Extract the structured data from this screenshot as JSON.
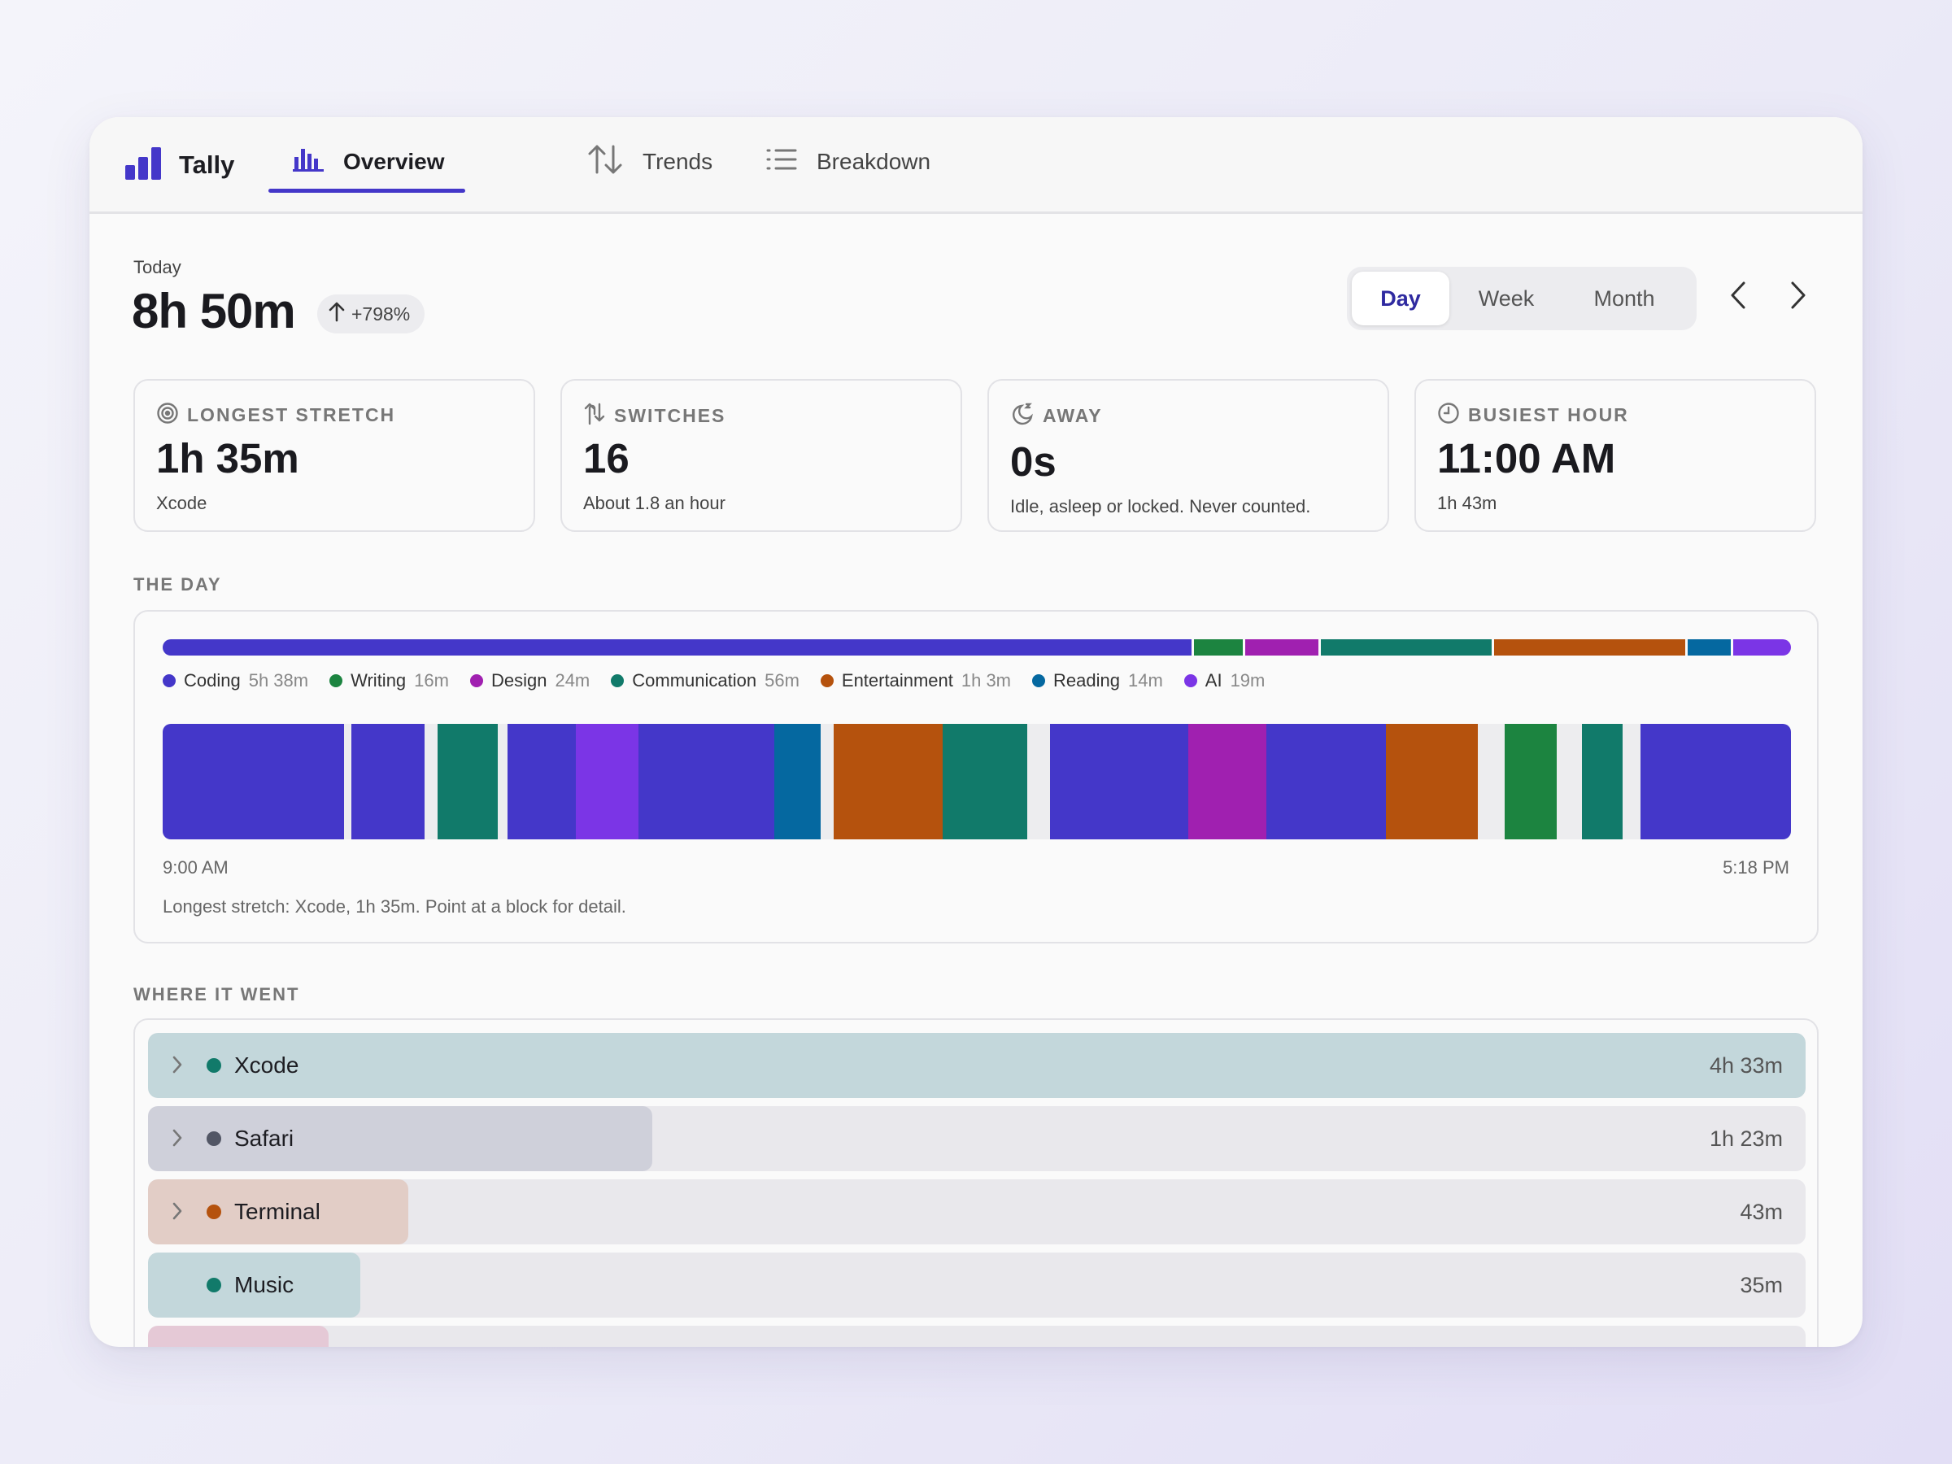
{
  "app": {
    "name": "Tally",
    "brand_color": "#4437c9"
  },
  "tabs": [
    {
      "label": "Overview",
      "icon": "bar-chart-icon",
      "active": true
    },
    {
      "label": "Trends",
      "icon": "sort-arrows-icon",
      "active": false
    },
    {
      "label": "Breakdown",
      "icon": "list-icon",
      "active": false
    }
  ],
  "summary": {
    "period_label": "Today",
    "total": "8h 50m",
    "change": "+798%"
  },
  "period_selector": {
    "options": [
      "Day",
      "Week",
      "Month"
    ],
    "selected": "Day"
  },
  "cards": [
    {
      "title": "LONGEST STRETCH",
      "icon": "target-icon",
      "value": "1h 35m",
      "sub": "Xcode"
    },
    {
      "title": "SWITCHES",
      "icon": "switch-arrows-icon",
      "value": "16",
      "sub": "About 1.8 an hour"
    },
    {
      "title": "AWAY",
      "icon": "moon-icon",
      "value": "0s",
      "sub": "Idle, asleep or locked. Never counted."
    },
    {
      "title": "BUSIEST HOUR",
      "icon": "clock-icon",
      "value": "11:00 AM",
      "sub": "1h 43m"
    }
  ],
  "the_day": {
    "label": "THE DAY",
    "categories": [
      {
        "name": "Coding",
        "duration": "5h 38m",
        "minutes": 338,
        "color": "#4437c9"
      },
      {
        "name": "Writing",
        "duration": "16m",
        "minutes": 16,
        "color": "#1c8440"
      },
      {
        "name": "Design",
        "duration": "24m",
        "minutes": 24,
        "color": "#a020b0"
      },
      {
        "name": "Communication",
        "duration": "56m",
        "minutes": 56,
        "color": "#117a6a"
      },
      {
        "name": "Entertainment",
        "duration": "1h 3m",
        "minutes": 63,
        "color": "#b5520d"
      },
      {
        "name": "Reading",
        "duration": "14m",
        "minutes": 14,
        "color": "#0568a0"
      },
      {
        "name": "AI",
        "duration": "19m",
        "minutes": 19,
        "color": "#7b35e6"
      }
    ],
    "timeline": {
      "start": "9:00 AM",
      "end": "5:18 PM",
      "blocks": [
        {
          "category": "Coding",
          "start_min": 0,
          "end_min": 55.4
        },
        {
          "category": "Coding",
          "start_min": 57.7,
          "end_min": 80
        },
        {
          "category": "Communication",
          "start_min": 84.2,
          "end_min": 102.5
        },
        {
          "category": "Coding",
          "start_min": 105.4,
          "end_min": 126.4
        },
        {
          "category": "AI",
          "start_min": 126.4,
          "end_min": 145.6
        },
        {
          "category": "Coding",
          "start_min": 145.6,
          "end_min": 187.1
        },
        {
          "category": "Reading",
          "start_min": 187.1,
          "end_min": 201.3
        },
        {
          "category": "Entertainment",
          "start_min": 205.1,
          "end_min": 238.6
        },
        {
          "category": "Communication",
          "start_min": 238.6,
          "end_min": 264.5
        },
        {
          "category": "Coding",
          "start_min": 271.4,
          "end_min": 313.6
        },
        {
          "category": "Design",
          "start_min": 313.6,
          "end_min": 337.6
        },
        {
          "category": "Coding",
          "start_min": 337.6,
          "end_min": 374.1
        },
        {
          "category": "Entertainment",
          "start_min": 374.1,
          "end_min": 402.3
        },
        {
          "category": "Writing",
          "start_min": 410.4,
          "end_min": 426.4
        },
        {
          "category": "Communication",
          "start_min": 434.1,
          "end_min": 446.4
        },
        {
          "category": "Coding",
          "start_min": 452.1,
          "end_min": 498
        }
      ]
    },
    "note": "Longest stretch: Xcode, 1h 35m. Point at a block for detail."
  },
  "where_it_went": {
    "label": "WHERE IT WENT",
    "apps": [
      {
        "name": "Xcode",
        "duration": "4h 33m",
        "share": 1.0,
        "dot": "#117a6a",
        "fill": "#c3d7db",
        "expandable": true
      },
      {
        "name": "Safari",
        "duration": "1h 23m",
        "share": 0.304,
        "dot": "#525665",
        "fill": "#cfd0da",
        "expandable": true
      },
      {
        "name": "Terminal",
        "duration": "43m",
        "share": 0.157,
        "dot": "#b5520d",
        "fill": "#e2cdc6",
        "expandable": true
      },
      {
        "name": "Music",
        "duration": "35m",
        "share": 0.128,
        "dot": "#117a6a",
        "fill": "#c3d7db",
        "expandable": false
      },
      {
        "name": "",
        "duration": "",
        "share": 0.109,
        "dot": "",
        "fill": "#e5c9d6",
        "expandable": false
      }
    ]
  }
}
